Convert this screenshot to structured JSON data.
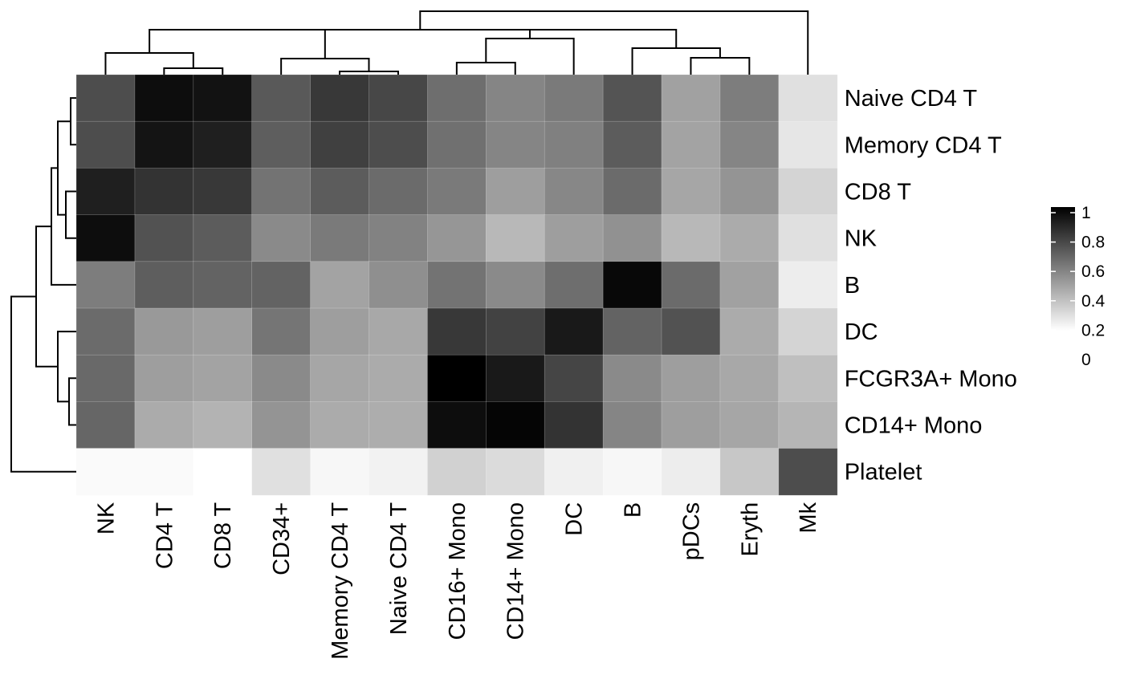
{
  "chart_data": {
    "type": "heatmap",
    "title": "",
    "xlabel": "",
    "ylabel": "",
    "columns": [
      "NK",
      "CD4 T",
      "CD8 T",
      "CD34+",
      "Memory CD4 T",
      "Naive CD4 T",
      "CD16+ Mono",
      "CD14+ Mono",
      "DC",
      "B",
      "pDCs",
      "Eryth",
      "Mk"
    ],
    "rows": [
      "Naive CD4 T",
      "Memory CD4 T",
      "CD8 T",
      "NK",
      "B",
      "DC",
      "FCGR3A+ Mono",
      "CD14+ Mono",
      "Platelet"
    ],
    "values": [
      [
        0.7,
        0.95,
        0.93,
        0.65,
        0.78,
        0.72,
        0.57,
        0.48,
        0.52,
        0.67,
        0.37,
        0.51,
        0.12
      ],
      [
        0.7,
        0.92,
        0.88,
        0.63,
        0.75,
        0.7,
        0.56,
        0.48,
        0.5,
        0.64,
        0.36,
        0.48,
        0.1
      ],
      [
        0.88,
        0.8,
        0.78,
        0.55,
        0.64,
        0.58,
        0.52,
        0.38,
        0.47,
        0.58,
        0.35,
        0.42,
        0.17
      ],
      [
        0.95,
        0.68,
        0.64,
        0.46,
        0.52,
        0.49,
        0.41,
        0.28,
        0.38,
        0.43,
        0.28,
        0.33,
        0.12
      ],
      [
        0.51,
        0.63,
        0.61,
        0.61,
        0.36,
        0.44,
        0.55,
        0.46,
        0.57,
        0.97,
        0.58,
        0.37,
        0.07
      ],
      [
        0.58,
        0.4,
        0.38,
        0.54,
        0.38,
        0.34,
        0.78,
        0.74,
        0.9,
        0.61,
        0.68,
        0.33,
        0.17
      ],
      [
        0.59,
        0.38,
        0.36,
        0.46,
        0.35,
        0.33,
        1.0,
        0.9,
        0.73,
        0.46,
        0.38,
        0.34,
        0.25
      ],
      [
        0.6,
        0.33,
        0.3,
        0.42,
        0.33,
        0.32,
        0.95,
        0.98,
        0.8,
        0.48,
        0.38,
        0.35,
        0.29
      ],
      [
        0.02,
        0.02,
        0.0,
        0.12,
        0.03,
        0.05,
        0.18,
        0.14,
        0.06,
        0.03,
        0.07,
        0.22,
        0.7
      ]
    ],
    "color_scale": {
      "low": "#ffffff",
      "high": "#000000",
      "min": 0,
      "max": 1
    },
    "legend": {
      "position": "right",
      "ticks": [
        0,
        0.2,
        0.4,
        0.6,
        0.8,
        1
      ],
      "tick_labels": [
        "0",
        "0.2",
        "0.4",
        "0.6",
        "0.8",
        "1"
      ]
    },
    "grid": false,
    "row_dendrogram": true,
    "column_dendrogram": true
  }
}
